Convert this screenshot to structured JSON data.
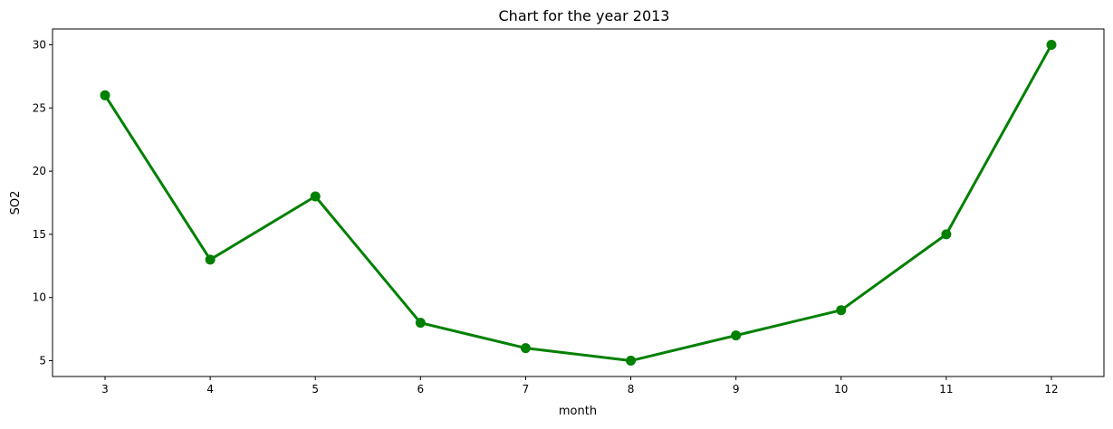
{
  "chart_data": {
    "type": "line",
    "title": "Chart for the year 2013",
    "xlabel": "month",
    "ylabel": "SO2",
    "categories": [
      "3",
      "4",
      "5",
      "6",
      "7",
      "8",
      "9",
      "10",
      "11",
      "12"
    ],
    "series": [
      {
        "values": [
          26,
          13,
          18,
          8,
          6,
          5,
          7,
          9,
          15,
          30
        ],
        "color": "#008000"
      }
    ],
    "yticks": [
      5,
      10,
      15,
      20,
      25,
      30
    ],
    "ylim": [
      3.75,
      31.25
    ],
    "grid": false,
    "legend": "none",
    "marker": "circle"
  }
}
